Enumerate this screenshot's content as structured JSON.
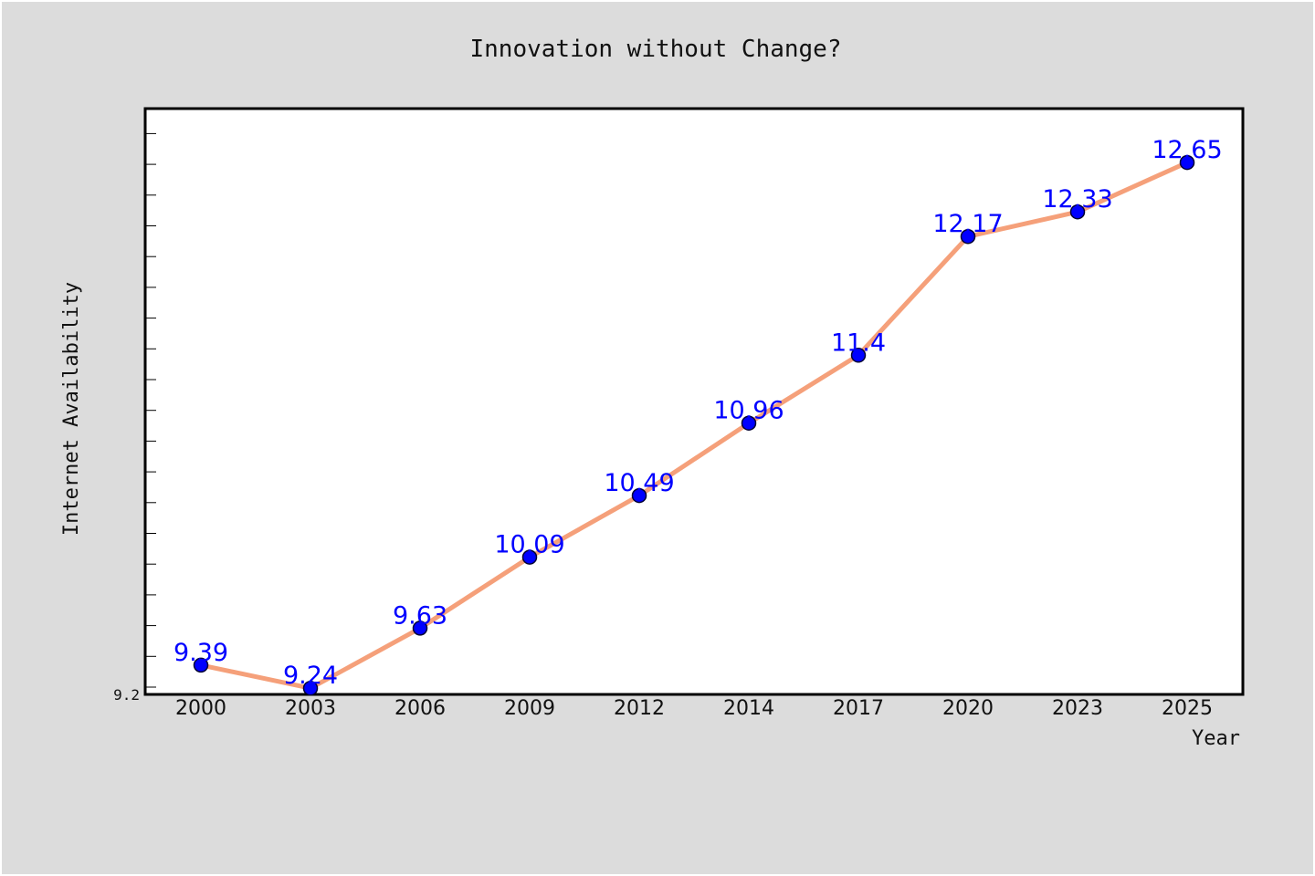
{
  "chart_data": {
    "type": "line",
    "title": "Innovation without Change?",
    "xlabel": "Year",
    "ylabel": "Internet Availability",
    "categories": [
      "2000",
      "2003",
      "2006",
      "2009",
      "2012",
      "2014",
      "2017",
      "2020",
      "2023",
      "2025"
    ],
    "series": [
      {
        "values": [
          9.39,
          9.24,
          9.63,
          10.09,
          10.49,
          10.96,
          11.4,
          12.17,
          12.33,
          12.65
        ],
        "labels": [
          "9.39",
          "9.24",
          "9.63",
          "10.09",
          "10.49",
          "10.96",
          "11.4",
          "12.17",
          "12.33",
          "12.65"
        ]
      }
    ],
    "ylim": [
      9.2,
      13.0
    ],
    "yticks_labeled": [
      "9.2"
    ],
    "grid": false,
    "legend": "none",
    "colors": {
      "line": "#f5a07a",
      "marker_fill": "#0000ff",
      "marker_edge": "#000033",
      "data_label": "#0000ff",
      "figure_bg": "#dcdcdc",
      "plot_bg": "#ffffff"
    }
  }
}
